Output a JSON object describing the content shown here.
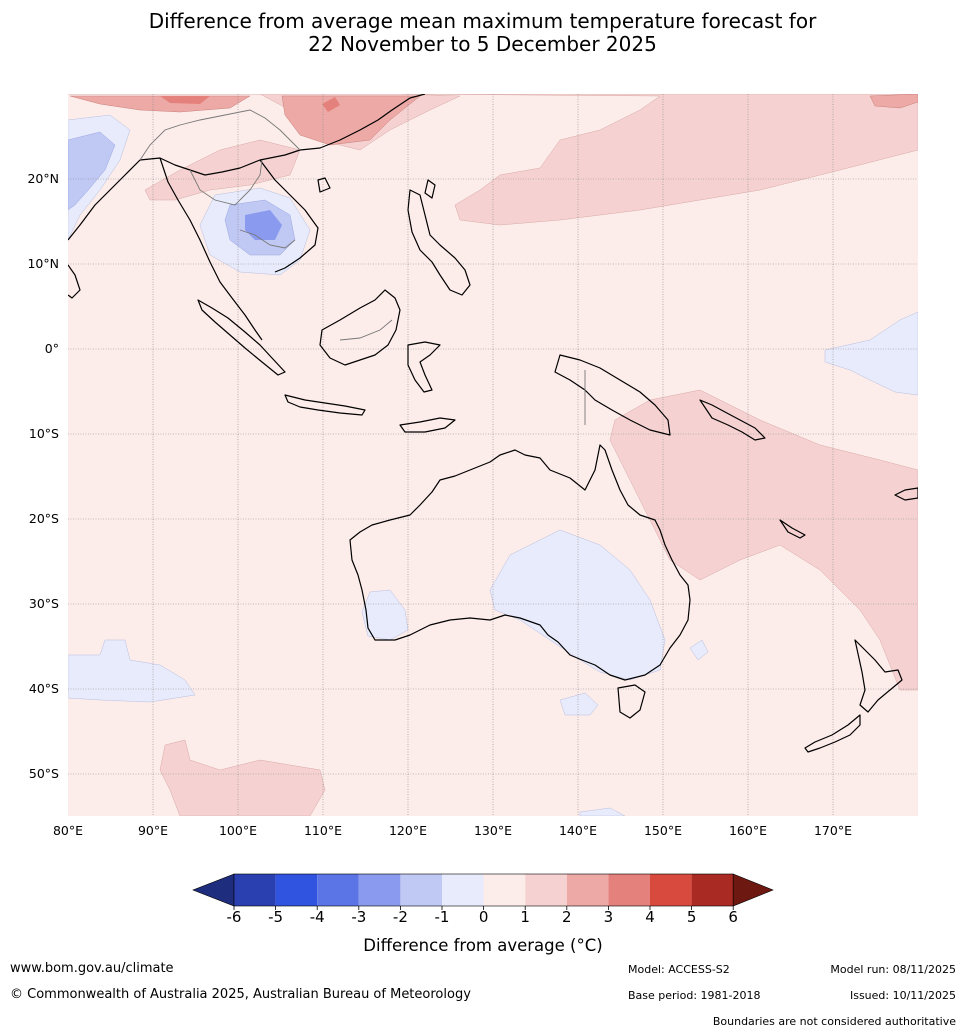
{
  "title": {
    "line1": "Difference from average mean maximum temperature forecast for",
    "line2": "22 November to 5 December 2025"
  },
  "map": {
    "lon_labels": [
      "80°E",
      "90°E",
      "100°E",
      "110°E",
      "120°E",
      "130°E",
      "140°E",
      "150°E",
      "160°E",
      "170°E"
    ],
    "lat_labels": [
      "20°N",
      "10°N",
      "0°",
      "10°S",
      "20°S",
      "30°S",
      "40°S",
      "50°S"
    ]
  },
  "colorbar": {
    "ticks": [
      "-6",
      "-5",
      "-4",
      "-3",
      "-2",
      "-1",
      "0",
      "1",
      "2",
      "3",
      "4",
      "5",
      "6"
    ],
    "colors": [
      "#1f2d7e",
      "#2a3fb0",
      "#3054e0",
      "#5b74e6",
      "#8a9aee",
      "#c0c8f4",
      "#e8ebfb",
      "#fcecea",
      "#f5d2d1",
      "#eca9a6",
      "#e5817c",
      "#d94a3e",
      "#a82a22",
      "#6e1812"
    ],
    "label": "Difference from average (°C)"
  },
  "footer": {
    "website": "www.bom.gov.au/climate",
    "copyright": "© Commonwealth of Australia 2025, Australian Bureau of Meteorology",
    "model": "Model: ACCESS-S2",
    "base_period": "Base period: 1981-2018",
    "model_run": "Model run: 08/11/2025",
    "issued": "Issued: 10/11/2025",
    "disclaimer": "Boundaries are not considered authoritative"
  }
}
